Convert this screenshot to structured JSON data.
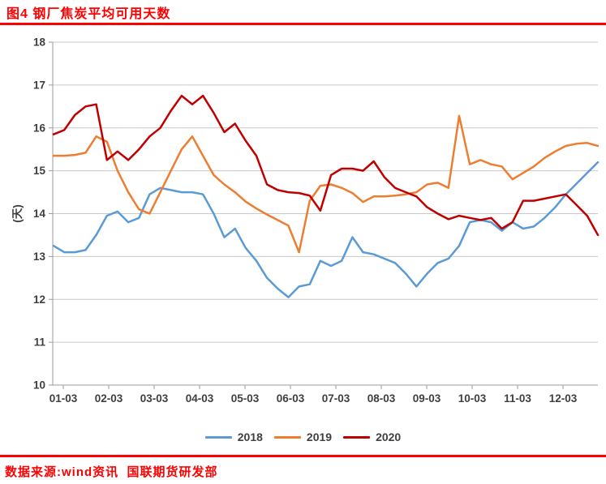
{
  "header": {
    "title": "图4 钢厂焦炭平均可用天数"
  },
  "footer": {
    "source": "数据来源:wind资讯  国联期货研发部"
  },
  "chart_data": {
    "type": "line",
    "title": "钢厂焦炭平均可用天数",
    "ylabel": "(天)",
    "ylim": [
      10,
      18
    ],
    "ytick_step": 1,
    "yticks": [
      10,
      11,
      12,
      13,
      14,
      15,
      16,
      17,
      18
    ],
    "x_tick_labels": [
      "01-03",
      "02-03",
      "03-03",
      "04-03",
      "05-03",
      "06-03",
      "07-03",
      "08-03",
      "09-03",
      "10-03",
      "11-03",
      "12-03"
    ],
    "x_unit": "weekly data, one calendar year (month-day labels)",
    "grid": "horizontal",
    "legend_position": "bottom",
    "series": [
      {
        "name": "2018",
        "color": "#5B9BD5",
        "values": [
          13.25,
          13.1,
          13.1,
          13.15,
          13.5,
          13.95,
          14.05,
          13.8,
          13.9,
          14.45,
          14.6,
          14.55,
          14.5,
          14.5,
          14.45,
          14.0,
          13.45,
          13.65,
          13.2,
          12.9,
          12.5,
          12.25,
          12.05,
          12.3,
          12.35,
          12.9,
          12.78,
          12.9,
          13.45,
          13.1,
          13.05,
          12.95,
          12.85,
          12.6,
          12.3,
          12.6,
          12.85,
          12.95,
          13.25,
          13.8,
          13.85,
          13.8,
          13.6,
          13.8,
          13.65,
          13.7,
          13.9,
          14.15,
          14.45,
          14.7,
          14.95,
          15.2
        ]
      },
      {
        "name": "2019",
        "color": "#ED7D31",
        "values": [
          15.35,
          15.35,
          15.37,
          15.42,
          15.8,
          15.68,
          15.0,
          14.5,
          14.1,
          14.0,
          14.5,
          15.0,
          15.5,
          15.8,
          15.35,
          14.9,
          14.68,
          14.5,
          14.28,
          14.12,
          13.98,
          13.85,
          13.72,
          13.1,
          14.3,
          14.65,
          14.68,
          14.6,
          14.48,
          14.27,
          14.4,
          14.4,
          14.42,
          14.45,
          14.5,
          14.68,
          14.72,
          14.6,
          16.28,
          15.15,
          15.25,
          15.15,
          15.1,
          14.8,
          14.95,
          15.1,
          15.3,
          15.45,
          15.58,
          15.63,
          15.65,
          15.58
        ]
      },
      {
        "name": "2020",
        "color": "#C00000",
        "values": [
          15.85,
          15.95,
          16.3,
          16.5,
          16.55,
          15.25,
          15.45,
          15.25,
          15.5,
          15.8,
          16.0,
          16.4,
          16.75,
          16.55,
          16.75,
          16.35,
          15.9,
          16.1,
          15.7,
          15.35,
          14.68,
          14.55,
          14.5,
          14.48,
          14.42,
          14.07,
          14.9,
          15.05,
          15.05,
          15.0,
          15.22,
          14.85,
          14.6,
          14.5,
          14.4,
          14.15,
          14.0,
          13.87,
          13.95,
          13.9,
          13.85,
          13.9,
          13.65,
          13.8,
          14.3,
          14.3,
          14.35,
          14.4,
          14.45,
          14.2,
          13.95,
          13.5
        ]
      }
    ]
  },
  "colors": {
    "title_red": "#FF0000",
    "gridline": "#C9C9C9",
    "axis_line": "#9B9B9B",
    "axis_text": "#3F3F3F"
  }
}
